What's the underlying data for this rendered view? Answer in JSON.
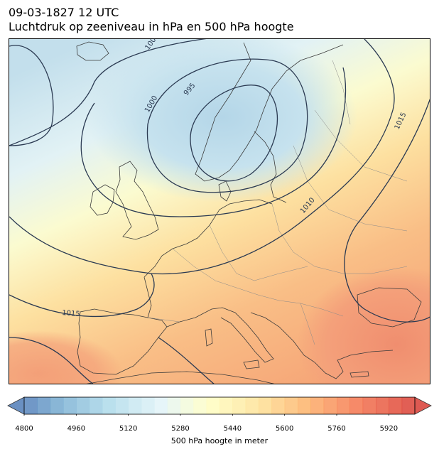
{
  "header": {
    "datetime": "09-03-1827 12 UTC",
    "subtitle": "Luchtdruk op zeeniveau in hPa en 500 hPa hoogte"
  },
  "map": {
    "isobar_color": "#2b3a52",
    "coastline_color": "#3b3b3b",
    "border_color": "#8a8a8a",
    "isobar_labels": [
      "100",
      "1000",
      "995",
      "1010",
      "1015",
      "1015"
    ],
    "low_centre_hpa": 995,
    "high_pressure_south_hpa": 1015
  },
  "colorbar": {
    "label": "500 hPa hoogte in meter",
    "min": 4800,
    "max": 6000,
    "step": 40,
    "tick_values": [
      "4800",
      "4960",
      "5120",
      "5280",
      "5440",
      "5600",
      "5760",
      "5920"
    ],
    "colormap": "RdYlBu_r",
    "extend": "both"
  }
}
